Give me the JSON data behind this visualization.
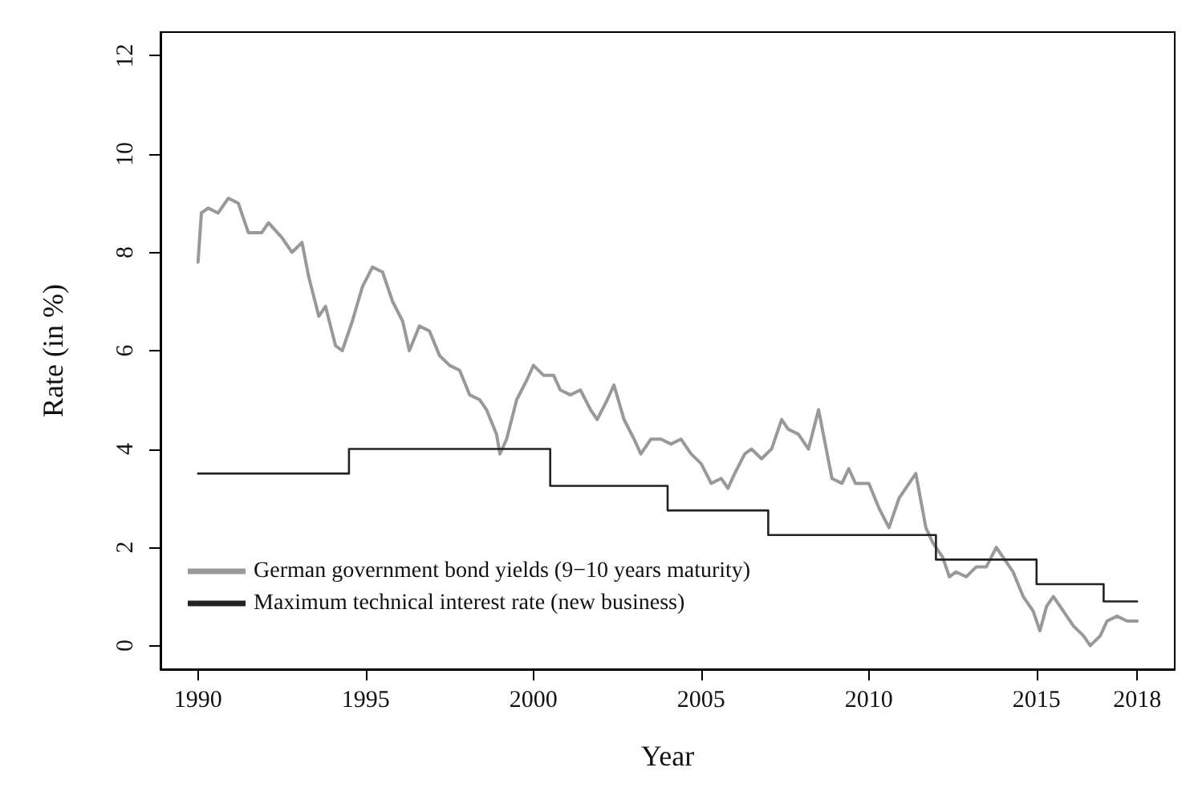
{
  "chart_data": {
    "type": "line",
    "xlabel": "Year",
    "ylabel": "Rate (in %)",
    "xlim": [
      1988.88,
      2019.12
    ],
    "ylim": [
      -0.48,
      12.48
    ],
    "xticks": [
      1990,
      1995,
      2000,
      2005,
      2010,
      2015,
      2018
    ],
    "yticks": [
      0,
      2,
      4,
      6,
      8,
      10,
      12
    ],
    "grid": false,
    "legend": "bottom left",
    "marker": "none",
    "line_style": "solid",
    "series": [
      {
        "name": "German government bond yields (9−10 years maturity)",
        "color": "#999999",
        "x": [
          1990.0,
          1990.1,
          1990.3,
          1990.6,
          1990.9,
          1991.2,
          1991.5,
          1991.9,
          1992.1,
          1992.5,
          1992.8,
          1993.1,
          1993.3,
          1993.6,
          1993.8,
          1994.1,
          1994.3,
          1994.6,
          1994.9,
          1995.2,
          1995.5,
          1995.8,
          1996.1,
          1996.3,
          1996.6,
          1996.9,
          1997.2,
          1997.5,
          1997.8,
          1998.1,
          1998.4,
          1998.6,
          1998.9,
          1999.0,
          1999.2,
          1999.5,
          1999.8,
          2000.0,
          2000.3,
          2000.6,
          2000.8,
          2001.1,
          2001.4,
          2001.7,
          2001.9,
          2002.2,
          2002.4,
          2002.7,
          2003.0,
          2003.2,
          2003.5,
          2003.8,
          2004.1,
          2004.4,
          2004.7,
          2005.0,
          2005.3,
          2005.6,
          2005.8,
          2006.0,
          2006.3,
          2006.5,
          2006.8,
          2007.1,
          2007.4,
          2007.6,
          2007.9,
          2008.2,
          2008.5,
          2008.7,
          2008.9,
          2009.2,
          2009.4,
          2009.6,
          2010.0,
          2010.3,
          2010.6,
          2010.9,
          2011.2,
          2011.4,
          2011.7,
          2011.9,
          2012.2,
          2012.4,
          2012.6,
          2012.9,
          2013.2,
          2013.5,
          2013.8,
          2014.0,
          2014.3,
          2014.6,
          2014.9,
          2015.1,
          2015.3,
          2015.5,
          2015.8,
          2016.1,
          2016.4,
          2016.6,
          2016.9,
          2017.1,
          2017.4,
          2017.7,
          2018.0
        ],
        "values": [
          7.8,
          8.8,
          8.9,
          8.8,
          9.1,
          9.0,
          8.4,
          8.4,
          8.6,
          8.3,
          8.0,
          8.2,
          7.5,
          6.7,
          6.9,
          6.1,
          6.0,
          6.6,
          7.3,
          7.7,
          7.6,
          7.0,
          6.6,
          6.0,
          6.5,
          6.4,
          5.9,
          5.7,
          5.6,
          5.1,
          5.0,
          4.8,
          4.3,
          3.9,
          4.2,
          5.0,
          5.4,
          5.7,
          5.5,
          5.5,
          5.2,
          5.1,
          5.2,
          4.8,
          4.6,
          5.0,
          5.3,
          4.6,
          4.2,
          3.9,
          4.2,
          4.2,
          4.1,
          4.2,
          3.9,
          3.7,
          3.3,
          3.4,
          3.2,
          3.5,
          3.9,
          4.0,
          3.8,
          4.0,
          4.6,
          4.4,
          4.3,
          4.0,
          4.8,
          4.1,
          3.4,
          3.3,
          3.6,
          3.3,
          3.3,
          2.8,
          2.4,
          3.0,
          3.3,
          3.5,
          2.4,
          2.1,
          1.8,
          1.4,
          1.5,
          1.4,
          1.6,
          1.6,
          2.0,
          1.8,
          1.5,
          1.0,
          0.7,
          0.3,
          0.8,
          1.0,
          0.7,
          0.4,
          0.2,
          0.0,
          0.2,
          0.5,
          0.6,
          0.5,
          0.5
        ]
      },
      {
        "name": "Maximum technical interest rate (new business)",
        "type": "step",
        "color": "#222222",
        "x": [
          1990,
          1994.5,
          2000.5,
          2004,
          2007,
          2012,
          2015,
          2017,
          2018
        ],
        "values": [
          3.5,
          4.0,
          3.25,
          2.75,
          2.25,
          1.75,
          1.25,
          0.9,
          0.9
        ]
      }
    ]
  }
}
